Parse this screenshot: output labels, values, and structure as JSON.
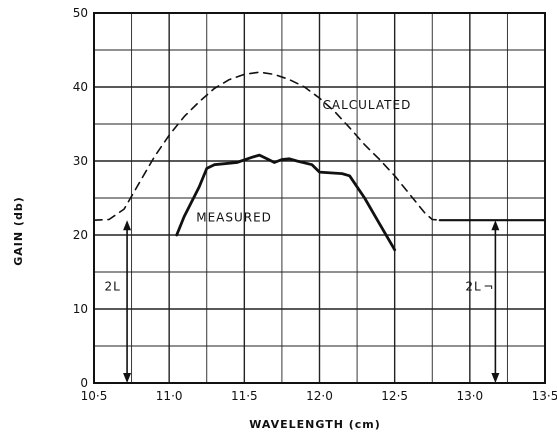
{
  "chart_data": {
    "type": "line",
    "xlabel": "WAVELENGTH (cm)",
    "ylabel": "GAIN (db)",
    "xlim": [
      10.5,
      13.5
    ],
    "ylim": [
      0,
      50
    ],
    "x_ticks": [
      "10·5",
      "11·0",
      "11·5",
      "12·0",
      "12·5",
      "13·0",
      "13·5"
    ],
    "y_ticks": [
      "0",
      "10",
      "20",
      "30",
      "40",
      "50"
    ],
    "grid": true,
    "series": [
      {
        "name": "CALCULATED",
        "style": "dashed",
        "points": [
          [
            10.5,
            22.0
          ],
          [
            10.6,
            22.1
          ],
          [
            10.7,
            23.5
          ],
          [
            10.8,
            27.0
          ],
          [
            10.9,
            30.5
          ],
          [
            11.0,
            33.5
          ],
          [
            11.1,
            36.0
          ],
          [
            11.2,
            38.0
          ],
          [
            11.3,
            39.8
          ],
          [
            11.4,
            41.0
          ],
          [
            11.5,
            41.7
          ],
          [
            11.6,
            42.0
          ],
          [
            11.7,
            41.7
          ],
          [
            11.8,
            41.0
          ],
          [
            11.9,
            40.0
          ],
          [
            12.0,
            38.5
          ],
          [
            12.1,
            36.7
          ],
          [
            12.2,
            34.5
          ],
          [
            12.3,
            32.2
          ],
          [
            12.4,
            30.2
          ],
          [
            12.5,
            28.0
          ],
          [
            12.6,
            25.5
          ],
          [
            12.7,
            23.0
          ],
          [
            12.75,
            22.1
          ],
          [
            12.8,
            22.0
          ]
        ]
      },
      {
        "name": "CALCULATED (flat)",
        "style": "solid",
        "points": [
          [
            12.8,
            22.0
          ],
          [
            13.5,
            22.0
          ]
        ]
      },
      {
        "name": "MEASURED",
        "style": "solid",
        "points": [
          [
            11.05,
            20.0
          ],
          [
            11.1,
            22.5
          ],
          [
            11.2,
            26.5
          ],
          [
            11.25,
            29.0
          ],
          [
            11.3,
            29.5
          ],
          [
            11.45,
            29.8
          ],
          [
            11.55,
            30.5
          ],
          [
            11.6,
            30.8
          ],
          [
            11.65,
            30.3
          ],
          [
            11.7,
            29.8
          ],
          [
            11.75,
            30.2
          ],
          [
            11.8,
            30.3
          ],
          [
            11.85,
            30.0
          ],
          [
            11.95,
            29.5
          ],
          [
            12.0,
            28.5
          ],
          [
            12.15,
            28.3
          ],
          [
            12.2,
            28.0
          ],
          [
            12.3,
            25.0
          ],
          [
            12.4,
            21.5
          ],
          [
            12.5,
            18.0
          ]
        ]
      }
    ],
    "annotations": [
      {
        "text": "CALCULATED",
        "x": 12.02,
        "y": 37.0
      },
      {
        "text": "MEASURED",
        "x": 11.18,
        "y": 21.8
      },
      {
        "text": "2L",
        "x": 10.57,
        "y": 12.5
      },
      {
        "text": "2L",
        "x": 12.97,
        "y": 12.5
      },
      {
        "text": "¬",
        "x": 13.09,
        "y": 12.5
      }
    ],
    "arrows": [
      {
        "x": 10.72,
        "y_from": 22,
        "y_to": 0
      },
      {
        "x": 13.17,
        "y_from": 22,
        "y_to": 0
      }
    ]
  }
}
